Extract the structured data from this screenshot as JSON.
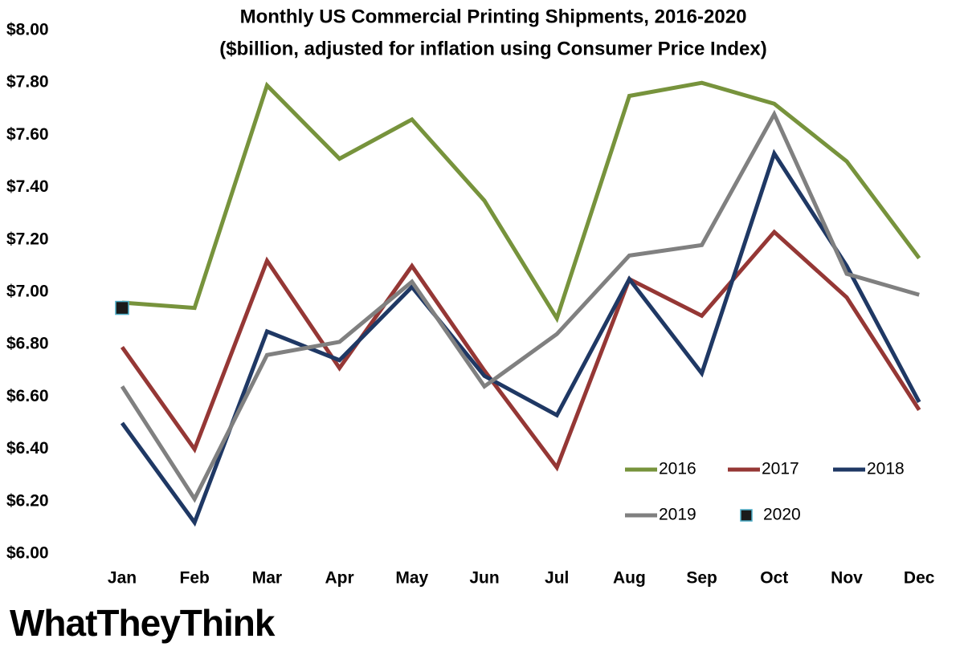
{
  "chart_data": {
    "type": "line",
    "title": "Monthly US Commercial Printing Shipments, 2016-2020",
    "subtitle": "($billion, adjusted for inflation using Consumer Price Index)",
    "categories": [
      "Jan",
      "Feb",
      "Mar",
      "Apr",
      "May",
      "Jun",
      "Jul",
      "Aug",
      "Sep",
      "Oct",
      "Nov",
      "Dec"
    ],
    "series": [
      {
        "name": "2016",
        "color": "#77933c",
        "values": [
          6.96,
          6.94,
          7.79,
          7.51,
          7.66,
          7.35,
          6.9,
          7.75,
          7.8,
          7.72,
          7.5,
          7.13
        ]
      },
      {
        "name": "2017",
        "color": "#953735",
        "values": [
          6.79,
          6.4,
          7.12,
          6.71,
          7.1,
          6.7,
          6.33,
          7.05,
          6.91,
          7.23,
          6.98,
          6.55
        ]
      },
      {
        "name": "2018",
        "color": "#1f3864",
        "values": [
          6.5,
          6.12,
          6.85,
          6.74,
          7.02,
          6.68,
          6.53,
          7.05,
          6.69,
          7.53,
          7.1,
          6.58
        ]
      },
      {
        "name": "2019",
        "color": "#808080",
        "values": [
          6.64,
          6.21,
          6.76,
          6.81,
          7.04,
          6.64,
          6.84,
          7.14,
          7.18,
          7.68,
          7.07,
          6.99
        ]
      },
      {
        "name": "2020",
        "color": "#1a1a1a",
        "marker": "square",
        "values": [
          6.94,
          null,
          null,
          null,
          null,
          null,
          null,
          null,
          null,
          null,
          null,
          null
        ]
      }
    ],
    "ylim": [
      6,
      8
    ],
    "yticks": [
      {
        "value": 6,
        "label": "$6.00"
      },
      {
        "value": 6.2,
        "label": "$6.20"
      },
      {
        "value": 6.4,
        "label": "$6.40"
      },
      {
        "value": 6.6,
        "label": "$6.60"
      },
      {
        "value": 6.8,
        "label": "$6.80"
      },
      {
        "value": 7,
        "label": "$7.00"
      },
      {
        "value": 7.2,
        "label": "$7.20"
      },
      {
        "value": 7.4,
        "label": "$7.40"
      },
      {
        "value": 7.6,
        "label": "$7.60"
      },
      {
        "value": 7.8,
        "label": "$7.80"
      },
      {
        "value": 8,
        "label": "$8.00"
      }
    ],
    "grid": false,
    "legend": "lower right",
    "logo": "WhatTheyThink"
  }
}
